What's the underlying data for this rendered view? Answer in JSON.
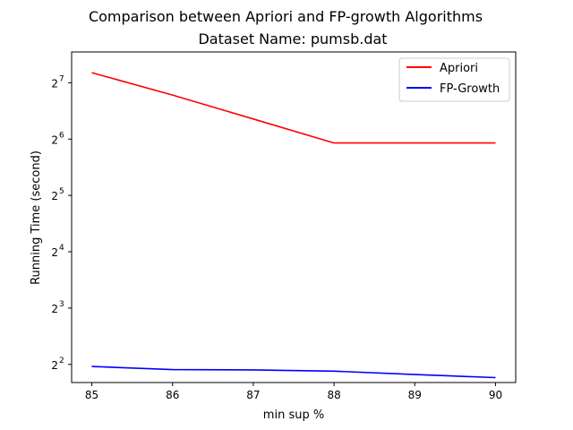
{
  "chart_data": {
    "type": "line",
    "title": "Comparison between Apriori and FP-growth Algorithms",
    "subtitle": "Dataset Name: pumsb.dat",
    "xlabel": "min sup %",
    "ylabel": "Running Time (second)",
    "x": [
      85,
      86,
      87,
      88,
      89,
      90
    ],
    "x_ticks": [
      "85",
      "86",
      "87",
      "88",
      "89",
      "90"
    ],
    "xlim": [
      84.75,
      90.25
    ],
    "y_scale": "log2",
    "y_tick_base": "2",
    "y_ticks": [
      4,
      8,
      16,
      32,
      64,
      128
    ],
    "y_tick_exponents": [
      "2",
      "3",
      "4",
      "5",
      "6",
      "7"
    ],
    "ylim": [
      3.2,
      187
    ],
    "grid": false,
    "legend_position": "top-right",
    "series": [
      {
        "name": "Apriori",
        "color": "#ff0000",
        "values": [
          145,
          110,
          82,
          61,
          61,
          61
        ]
      },
      {
        "name": "FP-Growth",
        "color": "#0000ff",
        "values": [
          3.9,
          3.75,
          3.74,
          3.68,
          3.53,
          3.4
        ]
      }
    ]
  }
}
